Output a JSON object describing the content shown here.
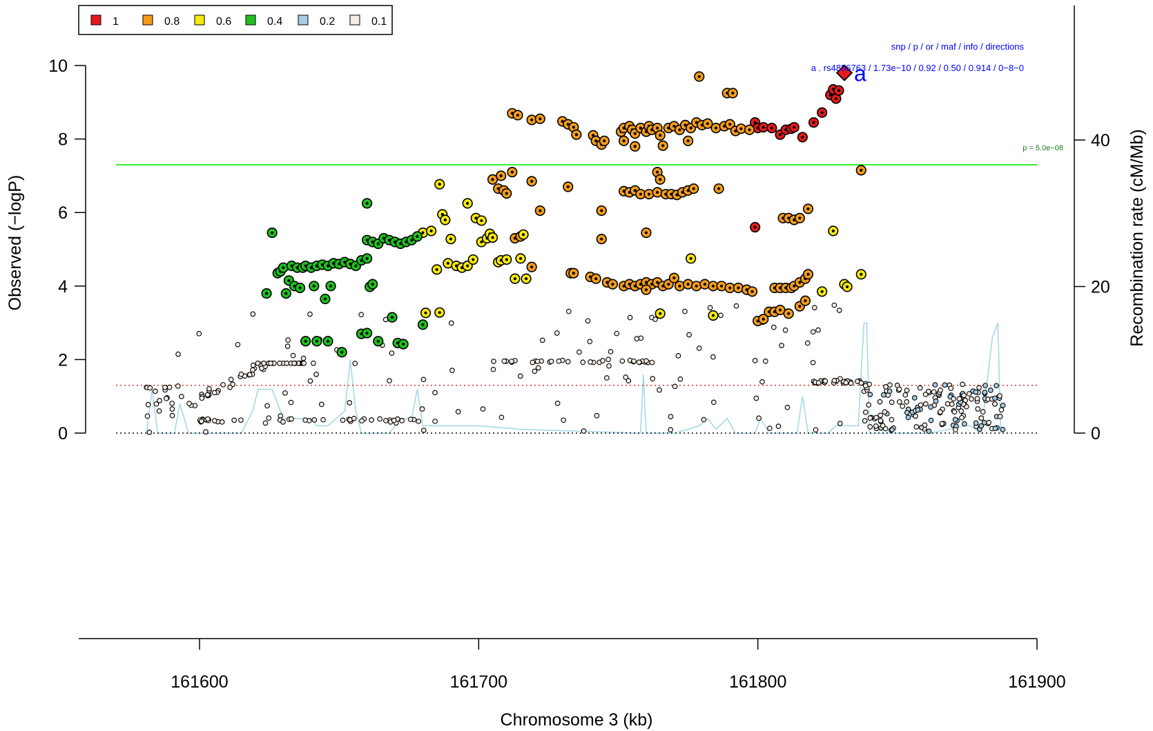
{
  "chart_data": {
    "type": "scatter",
    "title": "",
    "xlabel": "Chromosome 3 (kb)",
    "ylabel": "Observed (−logP)",
    "y2label": "Recombination rate (cM/Mb)",
    "xlim": [
      161557,
      161900
    ],
    "ylim": [
      0,
      10
    ],
    "y2lim": [
      0,
      54
    ],
    "x_ticks": [
      161600,
      161700,
      161800,
      161900
    ],
    "y_ticks": [
      0,
      2,
      4,
      6,
      8,
      10
    ],
    "y2_ticks": [
      0,
      20,
      40
    ],
    "grid": false,
    "legend": {
      "placement": "top-left",
      "entries": [
        {
          "label": "1",
          "color": "#e31a1c"
        },
        {
          "label": "0.8",
          "color": "#f39c1b"
        },
        {
          "label": "0.6",
          "color": "#f5e90d"
        },
        {
          "label": "0.4",
          "color": "#1fbf1f"
        },
        {
          "label": "0.2",
          "color": "#a6cee3"
        },
        {
          "label": "0.1",
          "color": "#f5ece4"
        }
      ]
    },
    "thresholds": [
      {
        "label": "p = 5.0e−08",
        "y": 7.3,
        "color": "#00ee00",
        "style": "solid"
      },
      {
        "label": "",
        "y": 1.3,
        "color": "#e31a1c",
        "style": "dotted"
      },
      {
        "label": "",
        "y": 0,
        "color": "#000000",
        "style": "dotted"
      }
    ],
    "lead_snp": {
      "letter": "a",
      "x": 161831,
      "y": 9.8,
      "header": "snp / p / or / maf / info / directions",
      "detail": "a . rs4856763 / 1.73e−10 / 0.92 / 0.50 / 0.914 / 0−8−0"
    },
    "series": [
      {
        "ld": "1",
        "color": "#e31a1c",
        "points": [
          [
            161799,
            8.45
          ],
          [
            161800,
            8.3
          ],
          [
            161802,
            8.32
          ],
          [
            161805,
            8.3
          ],
          [
            161808,
            8.12
          ],
          [
            161810,
            8.25
          ],
          [
            161812,
            8.28
          ],
          [
            161813,
            8.32
          ],
          [
            161816,
            8.05
          ],
          [
            161820,
            8.45
          ],
          [
            161823,
            8.72
          ],
          [
            161826,
            9.2
          ],
          [
            161827,
            9.35
          ],
          [
            161828,
            9.1
          ],
          [
            161829,
            9.32
          ],
          [
            161799,
            5.6
          ]
        ]
      },
      {
        "ld": "0.8",
        "color": "#f39c1b",
        "points": [
          [
            161712,
            8.7
          ],
          [
            161714,
            8.65
          ],
          [
            161719,
            8.52
          ],
          [
            161722,
            8.55
          ],
          [
            161730,
            8.48
          ],
          [
            161732,
            8.4
          ],
          [
            161734,
            8.32
          ],
          [
            161735,
            8.12
          ],
          [
            161741,
            8.1
          ],
          [
            161742,
            7.95
          ],
          [
            161744,
            7.85
          ],
          [
            161745,
            7.95
          ],
          [
            161751,
            8.2
          ],
          [
            161752,
            8.3
          ],
          [
            161752,
            7.95
          ],
          [
            161754,
            8.35
          ],
          [
            161755,
            8.25
          ],
          [
            161756,
            8.15
          ],
          [
            161756,
            7.8
          ],
          [
            161758,
            8.3
          ],
          [
            161760,
            8.2
          ],
          [
            161761,
            8.35
          ],
          [
            161762,
            8.25
          ],
          [
            161764,
            8.3
          ],
          [
            161765,
            8.1
          ],
          [
            161766,
            7.82
          ],
          [
            161768,
            8.3
          ],
          [
            161770,
            8.35
          ],
          [
            161772,
            8.25
          ],
          [
            161774,
            8.38
          ],
          [
            161775,
            7.95
          ],
          [
            161776,
            8.3
          ],
          [
            161778,
            8.45
          ],
          [
            161780,
            8.38
          ],
          [
            161782,
            8.42
          ],
          [
            161785,
            8.3
          ],
          [
            161788,
            8.35
          ],
          [
            161790,
            8.4
          ],
          [
            161792,
            8.22
          ],
          [
            161794,
            8.28
          ],
          [
            161779,
            9.7
          ],
          [
            161789,
            9.25
          ],
          [
            161791,
            9.25
          ],
          [
            161797,
            8.25
          ],
          [
            161712,
            7.1
          ],
          [
            161705,
            6.9
          ],
          [
            161708,
            7.0
          ],
          [
            161707,
            6.65
          ],
          [
            161709,
            6.6
          ],
          [
            161710,
            6.52
          ],
          [
            161719,
            6.85
          ],
          [
            161722,
            6.05
          ],
          [
            161732,
            6.7
          ],
          [
            161744,
            6.05
          ],
          [
            161752,
            6.58
          ],
          [
            161754,
            6.55
          ],
          [
            161756,
            6.6
          ],
          [
            161758,
            6.5
          ],
          [
            161761,
            6.5
          ],
          [
            161764,
            7.1
          ],
          [
            161765,
            6.9
          ],
          [
            161764,
            6.55
          ],
          [
            161767,
            6.5
          ],
          [
            161769,
            6.5
          ],
          [
            161771,
            6.48
          ],
          [
            161773,
            6.55
          ],
          [
            161775,
            6.6
          ],
          [
            161777,
            6.65
          ],
          [
            161786,
            6.65
          ],
          [
            161744,
            5.28
          ],
          [
            161760,
            5.45
          ],
          [
            161713,
            5.3
          ],
          [
            161715,
            5.35
          ],
          [
            161719,
            4.52
          ],
          [
            161733,
            4.35
          ],
          [
            161734,
            4.35
          ],
          [
            161740,
            4.25
          ],
          [
            161742,
            4.2
          ],
          [
            161746,
            4.1
          ],
          [
            161748,
            4.05
          ],
          [
            161752,
            4.0
          ],
          [
            161754,
            4.05
          ],
          [
            161756,
            4.0
          ],
          [
            161758,
            4.05
          ],
          [
            161760,
            4.1
          ],
          [
            161762,
            4.05
          ],
          [
            161764,
            4.1
          ],
          [
            161766,
            4.0
          ],
          [
            161768,
            4.05
          ],
          [
            161770,
            4.22
          ],
          [
            161772,
            4.0
          ],
          [
            161775,
            4.05
          ],
          [
            161778,
            4.0
          ],
          [
            161781,
            4.05
          ],
          [
            161784,
            4.0
          ],
          [
            161787,
            4.0
          ],
          [
            161790,
            3.95
          ],
          [
            161793,
            3.95
          ],
          [
            161796,
            3.9
          ],
          [
            161798,
            3.85
          ],
          [
            161760,
            3.9
          ],
          [
            161806,
            3.95
          ],
          [
            161808,
            3.95
          ],
          [
            161810,
            3.95
          ],
          [
            161812,
            3.95
          ],
          [
            161813,
            4.0
          ],
          [
            161815,
            4.1
          ],
          [
            161817,
            4.2
          ],
          [
            161818,
            4.32
          ],
          [
            161809,
            5.85
          ],
          [
            161811,
            5.85
          ],
          [
            161813,
            5.8
          ],
          [
            161815,
            5.85
          ],
          [
            161818,
            6.1
          ],
          [
            161800,
            3.05
          ],
          [
            161802,
            3.1
          ],
          [
            161804,
            3.3
          ],
          [
            161806,
            3.3
          ],
          [
            161808,
            3.35
          ],
          [
            161811,
            3.25
          ],
          [
            161815,
            3.45
          ],
          [
            161817,
            3.6
          ],
          [
            161837,
            7.15
          ]
        ]
      },
      {
        "ld": "0.6",
        "color": "#f5e90d",
        "points": [
          [
            161680,
            5.45
          ],
          [
            161683,
            5.5
          ],
          [
            161685,
            4.45
          ],
          [
            161686,
            6.77
          ],
          [
            161687,
            5.95
          ],
          [
            161688,
            5.8
          ],
          [
            161690,
            5.28
          ],
          [
            161689,
            4.62
          ],
          [
            161692,
            4.55
          ],
          [
            161694,
            4.5
          ],
          [
            161696,
            4.55
          ],
          [
            161698,
            4.72
          ],
          [
            161696,
            6.25
          ],
          [
            161699,
            5.85
          ],
          [
            161701,
            5.78
          ],
          [
            161701,
            5.2
          ],
          [
            161703,
            5.3
          ],
          [
            161704,
            5.42
          ],
          [
            161705,
            5.32
          ],
          [
            161707,
            4.65
          ],
          [
            161708,
            4.7
          ],
          [
            161710,
            4.72
          ],
          [
            161713,
            4.2
          ],
          [
            161715,
            4.75
          ],
          [
            161717,
            4.2
          ],
          [
            161681,
            3.27
          ],
          [
            161686,
            3.28
          ],
          [
            161716,
            5.4
          ],
          [
            161776,
            4.75
          ],
          [
            161765,
            3.25
          ],
          [
            161784,
            3.2
          ],
          [
            161827,
            5.5
          ],
          [
            161831,
            4.05
          ],
          [
            161832,
            3.98
          ],
          [
            161837,
            4.32
          ],
          [
            161823,
            3.85
          ]
        ]
      },
      {
        "ld": "0.4",
        "color": "#1fbf1f",
        "points": [
          [
            161624,
            3.8
          ],
          [
            161626,
            5.45
          ],
          [
            161628,
            4.35
          ],
          [
            161629,
            4.4
          ],
          [
            161630,
            4.5
          ],
          [
            161632,
            4.15
          ],
          [
            161633,
            4.55
          ],
          [
            161635,
            4.5
          ],
          [
            161637,
            4.5
          ],
          [
            161638,
            4.55
          ],
          [
            161640,
            4.5
          ],
          [
            161642,
            4.55
          ],
          [
            161644,
            4.58
          ],
          [
            161646,
            4.55
          ],
          [
            161648,
            4.62
          ],
          [
            161650,
            4.6
          ],
          [
            161652,
            4.65
          ],
          [
            161654,
            4.6
          ],
          [
            161656,
            4.55
          ],
          [
            161658,
            4.7
          ],
          [
            161660,
            4.75
          ],
          [
            161631,
            3.8
          ],
          [
            161634,
            4.0
          ],
          [
            161636,
            3.95
          ],
          [
            161641,
            4.0
          ],
          [
            161645,
            3.65
          ],
          [
            161647,
            4.0
          ],
          [
            161660,
            5.25
          ],
          [
            161662,
            5.2
          ],
          [
            161664,
            5.15
          ],
          [
            161661,
            3.98
          ],
          [
            161662,
            4.05
          ],
          [
            161666,
            5.3
          ],
          [
            161668,
            5.25
          ],
          [
            161670,
            5.2
          ],
          [
            161672,
            5.15
          ],
          [
            161674,
            5.2
          ],
          [
            161676,
            5.25
          ],
          [
            161678,
            5.35
          ],
          [
            161660,
            6.25
          ],
          [
            161638,
            2.5
          ],
          [
            161642,
            2.5
          ],
          [
            161646,
            2.5
          ],
          [
            161651,
            2.2
          ],
          [
            161658,
            2.7
          ],
          [
            161660,
            2.72
          ],
          [
            161664,
            2.5
          ],
          [
            161669,
            3.15
          ],
          [
            161671,
            2.45
          ],
          [
            161673,
            2.42
          ],
          [
            161680,
            2.95
          ]
        ]
      }
    ]
  }
}
